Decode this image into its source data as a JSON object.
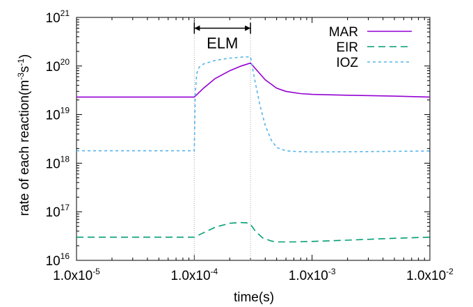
{
  "chart_data": {
    "type": "line",
    "title": "",
    "xlabel": "time(s)",
    "ylabel_parts": {
      "prefix": "rate of each reaction(m",
      "exp1": "-3",
      "mid": "s",
      "exp2": "-1",
      "suffix": ")"
    },
    "xscale": "log",
    "yscale": "log",
    "xlim": [
      1e-05,
      0.01
    ],
    "ylim": [
      1e+16,
      1e+21
    ],
    "grid": false,
    "legend_position": "top-right",
    "x_ticks": [
      {
        "value": 1e-05,
        "mant": "1.0x10",
        "exp": "-5"
      },
      {
        "value": 0.0001,
        "mant": "1.0x10",
        "exp": "-4"
      },
      {
        "value": 0.001,
        "mant": "1.0x10",
        "exp": "-3"
      },
      {
        "value": 0.01,
        "mant": "1.0x10",
        "exp": "-2"
      }
    ],
    "y_ticks": [
      {
        "value": 1e+16,
        "mant": "10",
        "exp": "16"
      },
      {
        "value": 1e+17,
        "mant": "10",
        "exp": "17"
      },
      {
        "value": 1e+18,
        "mant": "10",
        "exp": "18"
      },
      {
        "value": 1e+19,
        "mant": "10",
        "exp": "19"
      },
      {
        "value": 1e+20,
        "mant": "10",
        "exp": "20"
      },
      {
        "value": 1e+21,
        "mant": "10",
        "exp": "21"
      }
    ],
    "vlines": [
      0.0001,
      0.0003
    ],
    "annotation": {
      "text": "ELM",
      "from": 0.0001,
      "to": 0.0003,
      "y": 6e+20
    },
    "series": [
      {
        "name": "MAR",
        "color": "#9400d3",
        "dash": "",
        "x": [
          1e-05,
          5e-05,
          0.0001,
          0.00012,
          0.00015,
          0.0002,
          0.00025,
          0.0003,
          0.00035,
          0.0004,
          0.0005,
          0.0006,
          0.0008,
          0.001,
          0.002,
          0.005,
          0.01
        ],
        "y": [
          2.3e+19,
          2.3e+19,
          2.3e+19,
          3.5e+19,
          5.5e+19,
          8e+19,
          1e+20,
          1.15e+20,
          7.5e+19,
          5.2e+19,
          3.5e+19,
          3e+19,
          2.7e+19,
          2.6e+19,
          2.5e+19,
          2.4e+19,
          2.3e+19
        ]
      },
      {
        "name": "EIR",
        "color": "#009e73",
        "dash": "10,6",
        "x": [
          1e-05,
          5e-05,
          0.0001,
          0.00012,
          0.00015,
          0.0002,
          0.00025,
          0.00028,
          0.0003,
          0.00033,
          0.00038,
          0.00045,
          0.0005,
          0.0007,
          0.001,
          0.002,
          0.005,
          0.01
        ],
        "y": [
          3e+16,
          3e+16,
          3e+16,
          3.7e+16,
          4.8e+16,
          5.8e+16,
          6e+16,
          5.9e+16,
          5.5e+16,
          4e+16,
          2.9e+16,
          2.5e+16,
          2.4e+16,
          2.4e+16,
          2.45e+16,
          2.6e+16,
          2.85e+16,
          3e+16
        ]
      },
      {
        "name": "IOZ",
        "color": "#56b4e9",
        "dash": "4,4",
        "x": [
          1e-05,
          5e-05,
          0.0001,
          0.000102,
          0.000105,
          0.00011,
          0.00012,
          0.00015,
          0.0002,
          0.00025,
          0.0003,
          0.00031,
          0.00033,
          0.00036,
          0.0004,
          0.00045,
          0.0005,
          0.0006,
          0.0007,
          0.001,
          0.002,
          0.005,
          0.01
        ],
        "y": [
          1.8e+18,
          1.8e+18,
          1.8e+18,
          3e+19,
          7e+19,
          9.5e+19,
          1.1e+20,
          1.3e+20,
          1.45e+20,
          1.52e+20,
          1.55e+20,
          1e+20,
          4.5e+19,
          1.6e+19,
          6e+18,
          3e+18,
          2.1e+18,
          1.8e+18,
          1.75e+18,
          1.7e+18,
          1.72e+18,
          1.75e+18,
          1.78e+18
        ]
      }
    ]
  }
}
